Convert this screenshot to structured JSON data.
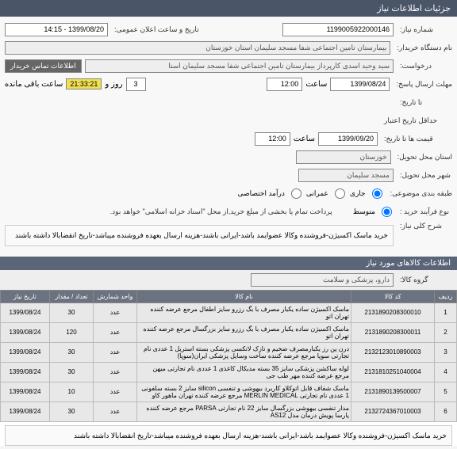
{
  "header": {
    "title": "جزئیات اطلاعات نیاز"
  },
  "form": {
    "need_no_label": "شماره نیاز:",
    "need_no": "1199005922000146",
    "announce_label": "تاریخ و ساعت اعلان عمومی:",
    "announce_value": "1399/08/20 - 14:15",
    "buyer_label": "نام دستگاه خریدار:",
    "buyer": "بیمارستان تامین اجتماعی شفا مسجد سلیمان استان خوزستان",
    "requester_label": "درخواست:",
    "requester": "سید وحید اسدی کارپرداز بیمارستان تامین اجتماعی شفا مسجد سلیمان استا",
    "contact_btn": "اطلاعات تماس خریدار",
    "reply_deadline_label": "مهلت ارسال پاسخ:",
    "reply_date": "1399/08/24",
    "time_label": "ساعت",
    "reply_time": "12:00",
    "days": "3",
    "days_label": "روز و",
    "timer": "21:33:21",
    "remain_label": "ساعت باقی مانده",
    "until_label": "تا تاریخ:",
    "credit_label": "حداقل تاریخ اعتبار",
    "credit_tolabel": "قیمت ها تا تاریخ:",
    "credit_date": "1399/09/20",
    "credit_time": "12:00",
    "province_label": "استان محل تحویل:",
    "province": "خوزستان",
    "city_label": "شهر محل تحویل:",
    "city": "مسجد سلیمان",
    "budget_label": "طبقه بندی موضوعی:",
    "budget_opt1": "جاری",
    "budget_opt2": "عمرانی",
    "budget_opt3": "درآمد اختصاصی",
    "buy_type_label": "نوع فرآیند خرید :",
    "buy_opt1": "متوسط",
    "buy_note": "پرداخت تمام یا بخشی از مبلغ خرید,از محل \"اسناد خزانه اسلامی\" خواهد بود.",
    "summary_label": "شرح کلی نیاز:",
    "summary": "خرید ماسک اکسیژن-فروشنده وکالا عضوایمد باشد-ایرانی باشند-هزینه ارسال بعهده فروشنده میباشد-تاریخ انقضابالا داشته باشند"
  },
  "goods_section": "اطلاعات کالاهای مورد نیاز",
  "group_label": "گروه کالا:",
  "group_value": "دارو، پزشکی و سلامت",
  "table": {
    "headers": [
      "ردیف",
      "کد کالا",
      "نام کالا",
      "واحد شمارش",
      "تعداد / مقدار",
      "تاریخ نیاز"
    ],
    "rows": [
      [
        "1",
        "2131890208300010",
        "ماسک اکسیژن ساده یکبار مصرف با بگ رزرو سایز اطفال مرجع عرضه کننده تهران اتو",
        "عدد",
        "30",
        "1399/08/24"
      ],
      [
        "2",
        "2131890208300011",
        "ماسک اکسیژن ساده یکبار مصرف با بگ رزرو سایز بزرگسال مرجع عرضه کننده تهران اتو",
        "عدد",
        "120",
        "1399/08/24"
      ],
      [
        "3",
        "2132123010890003",
        "درن پن رز یکبارمصرف ضخیم و نازک لاتکسی پزشکی بسته استریل 1 عددی نام تجارتی سوپا مرجع عرضه کننده ساخت وسایل پزشکی ایران(سوپا)",
        "عدد",
        "30",
        "1399/08/24"
      ],
      [
        "4",
        "2131810251040004",
        "لوله ساکشن پزشکی سایز 35 بسته مدیکال کاغذی 1 عددی نام تجارتی میهن مرجع عرضه کننده مهر طب جی",
        "عدد",
        "30",
        "1399/08/24"
      ],
      [
        "5",
        "2131890139500007",
        "ماسک شفاف قابل اتوکلاو کاربرد بیهوشی و تنفسی silicon سایز 2 بسته سلفونی 1 عددی نام تجارتی MERLIN MEDICAL مرجع عرضه کننده تهران ماهور کاو",
        "عدد",
        "10",
        "1399/08/24"
      ],
      [
        "6",
        "2132724367010003",
        "مدار تنفسی بیهوشی بزرگسال سایز 22 نام تجارتی PARSA مرجع عرضه کننده پارسا پویش درمان مدل AS12",
        "عدد",
        "30",
        "1399/08/24"
      ]
    ]
  },
  "footer_desc": "خرید ماسک اکسیژن-فروشنده وکالا عضوایمد باشد-ایرانی باشند-هزینه ارسال بعهده فروشنده میباشد-تاریخ انقضابالا داشته باشند"
}
